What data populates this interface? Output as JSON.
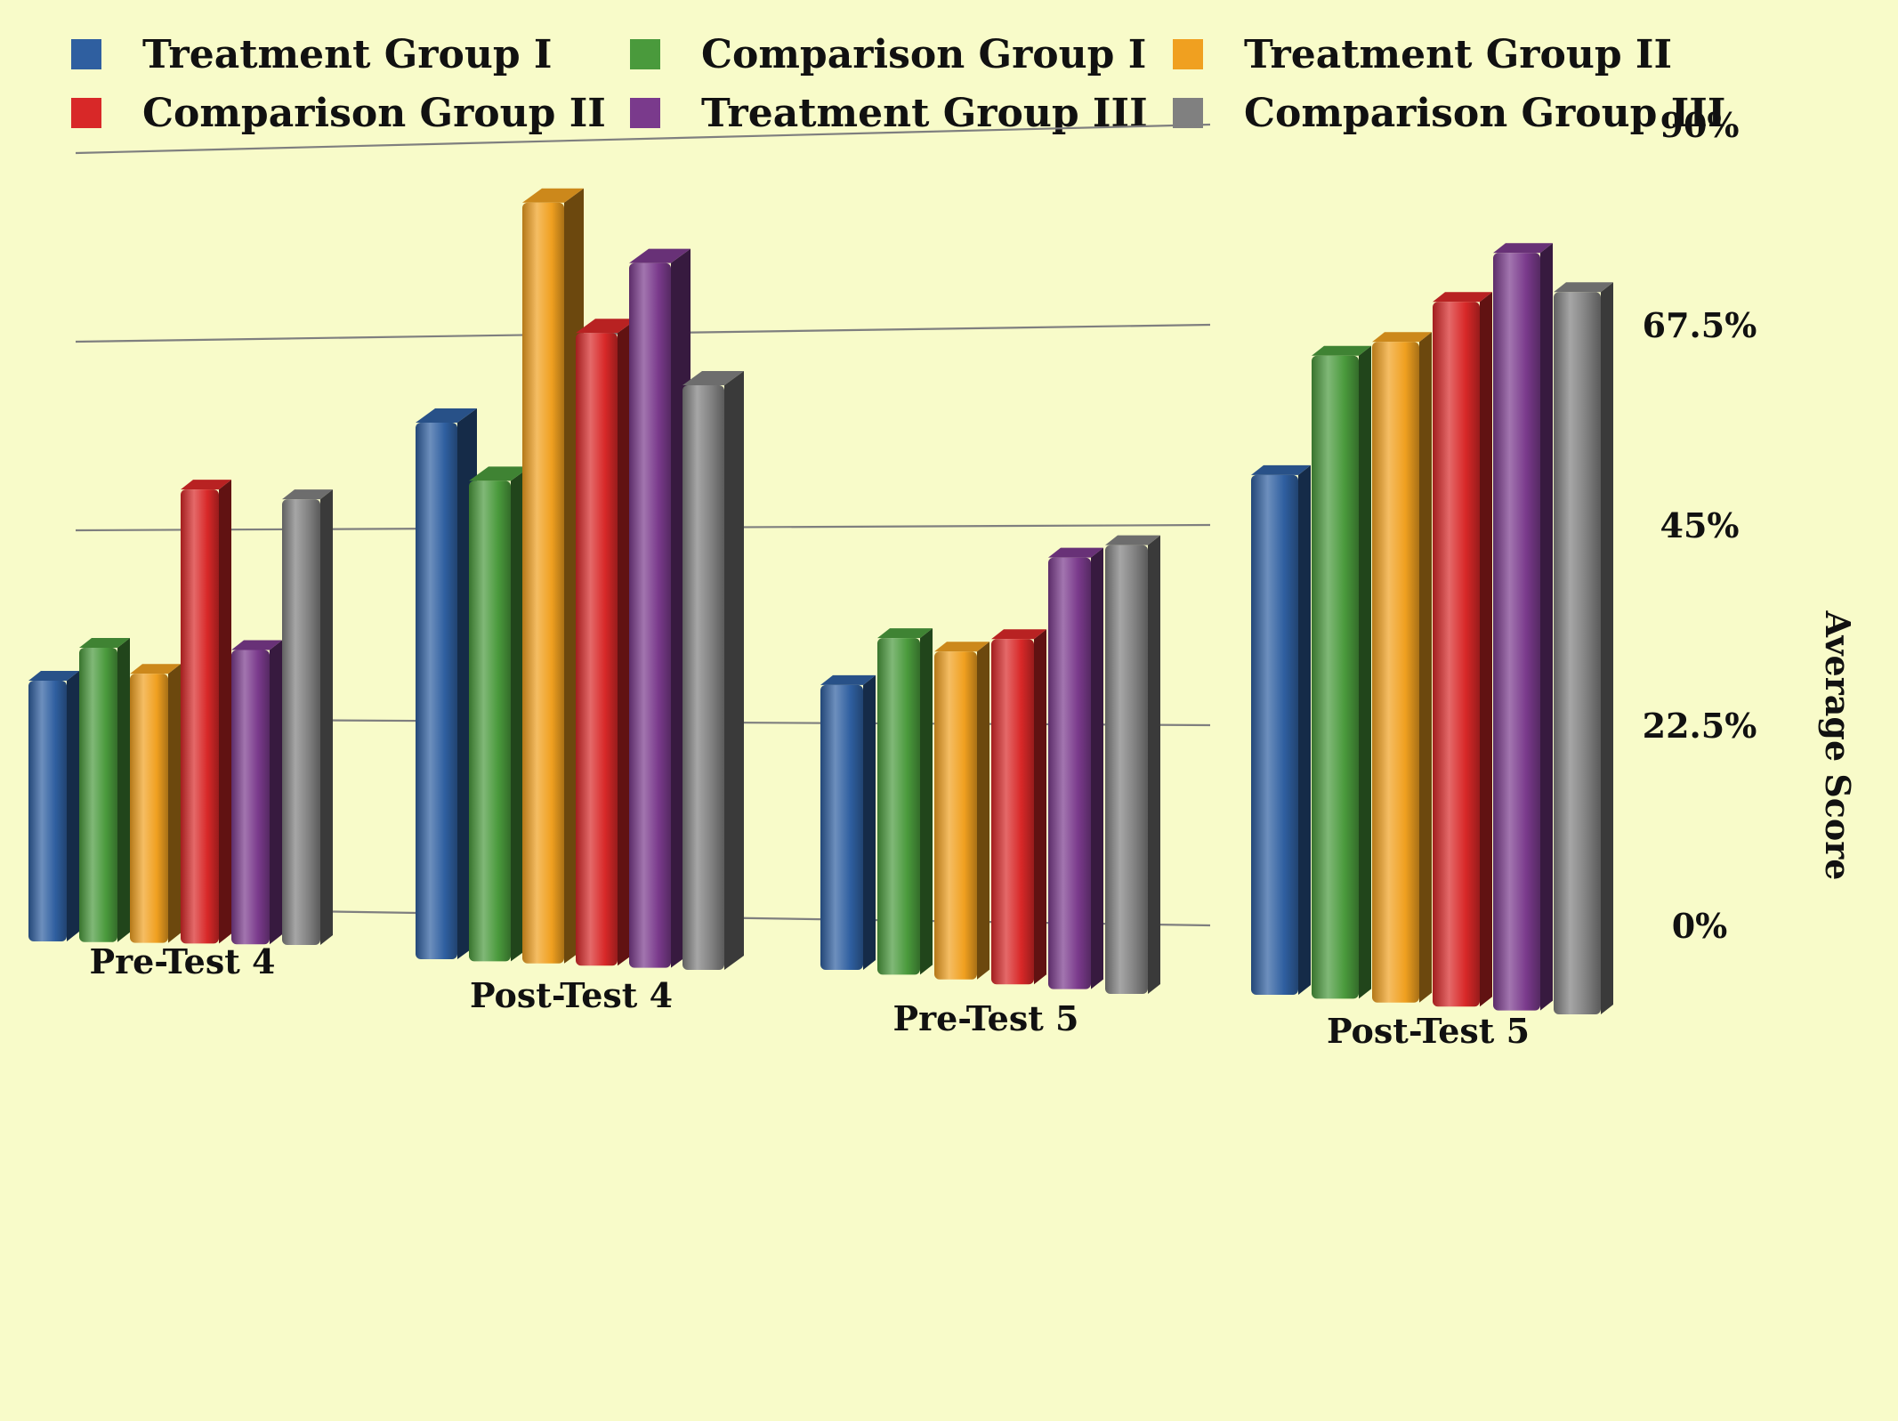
{
  "chart_data": {
    "type": "bar",
    "title": "",
    "xlabel": "",
    "ylabel": "Average Score",
    "ylim": [
      0,
      90
    ],
    "y_ticks": [
      "0%",
      "22.5%",
      "45%",
      "67.5%",
      "90%"
    ],
    "y_tick_values": [
      0,
      22.5,
      45,
      67.5,
      90
    ],
    "grid": true,
    "legend_position": "top",
    "categories": [
      "Pre-Test 4",
      "Post-Test 4",
      "Pre-Test 5",
      "Post-Test 5"
    ],
    "series": [
      {
        "name": "Treatment Group I",
        "color": "#2f5fa0",
        "values": [
          31,
          67,
          33,
          59
        ]
      },
      {
        "name": "Comparison Group I",
        "color": "#4a9a3c",
        "values": [
          35,
          60,
          39,
          73
        ]
      },
      {
        "name": "Treatment Group II",
        "color": "#f0a020",
        "values": [
          32,
          95,
          38,
          75
        ]
      },
      {
        "name": "Comparison Group II",
        "color": "#d82828",
        "values": [
          54,
          79,
          40,
          80
        ]
      },
      {
        "name": "Treatment Group III",
        "color": "#7a3a8c",
        "values": [
          35,
          88,
          50,
          86
        ]
      },
      {
        "name": "Comparison Group III",
        "color": "#808080",
        "values": [
          53,
          73,
          52,
          82
        ]
      }
    ]
  }
}
